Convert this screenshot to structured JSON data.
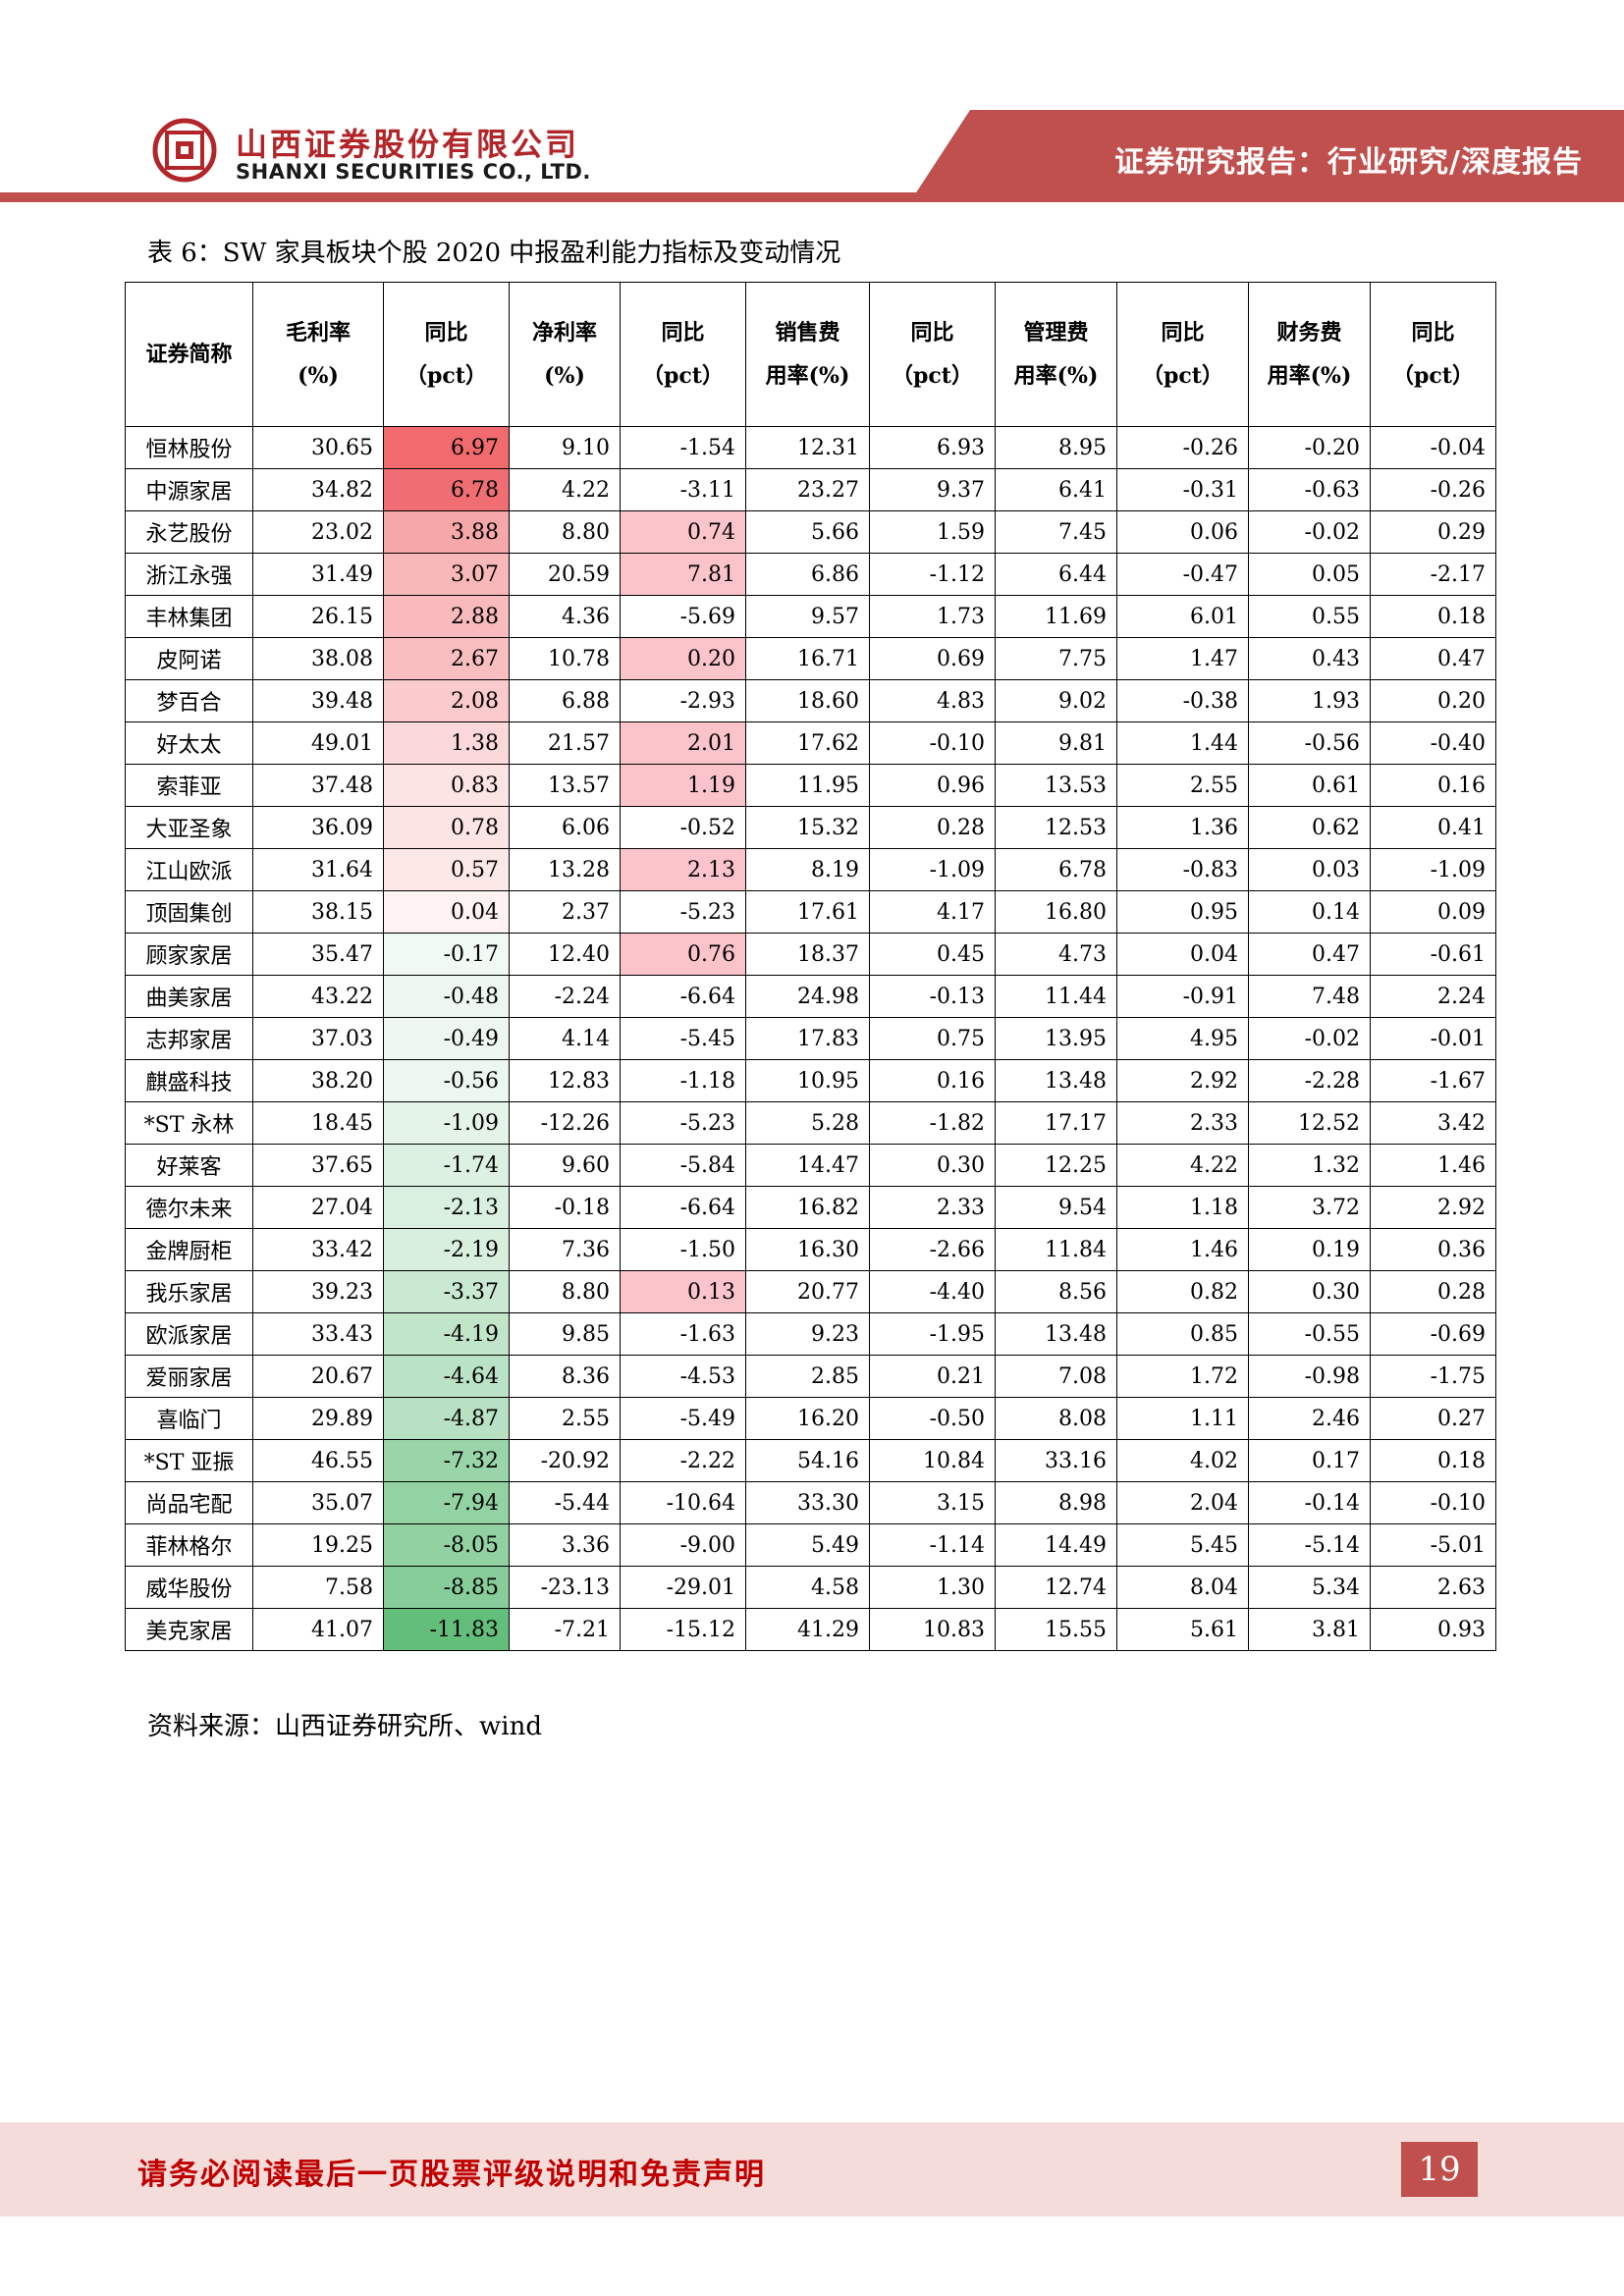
{
  "header": {
    "company_cn": "山西证券股份有限公司",
    "company_en": "SHANXI SECURITIES CO., LTD.",
    "report_type": "证券研究报告：行业研究/深度报告",
    "brand_color": "#c0504d"
  },
  "table": {
    "caption": "表 6：SW 家具板块个股 2020 中报盈利能力指标及变动情况",
    "headers": [
      [
        "证券简称"
      ],
      [
        "毛利率",
        "(%)"
      ],
      [
        "同比",
        "（pct）"
      ],
      [
        "净利率",
        "(%)"
      ],
      [
        "同比",
        "（pct）"
      ],
      [
        "销售费",
        "用率(%)"
      ],
      [
        "同比",
        "（pct）"
      ],
      [
        "管理费",
        "用率(%)"
      ],
      [
        "同比",
        "（pct）"
      ],
      [
        "财务费",
        "用率(%)"
      ],
      [
        "同比",
        "（pct）"
      ]
    ],
    "rows": [
      [
        "恒林股份",
        "30.65",
        "6.97",
        "9.10",
        "-1.54",
        "12.31",
        "6.93",
        "8.95",
        "-0.26",
        "-0.20",
        "-0.04"
      ],
      [
        "中源家居",
        "34.82",
        "6.78",
        "4.22",
        "-3.11",
        "23.27",
        "9.37",
        "6.41",
        "-0.31",
        "-0.63",
        "-0.26"
      ],
      [
        "永艺股份",
        "23.02",
        "3.88",
        "8.80",
        "0.74",
        "5.66",
        "1.59",
        "7.45",
        "0.06",
        "-0.02",
        "0.29"
      ],
      [
        "浙江永强",
        "31.49",
        "3.07",
        "20.59",
        "7.81",
        "6.86",
        "-1.12",
        "6.44",
        "-0.47",
        "0.05",
        "-2.17"
      ],
      [
        "丰林集团",
        "26.15",
        "2.88",
        "4.36",
        "-5.69",
        "9.57",
        "1.73",
        "11.69",
        "6.01",
        "0.55",
        "0.18"
      ],
      [
        "皮阿诺",
        "38.08",
        "2.67",
        "10.78",
        "0.20",
        "16.71",
        "0.69",
        "7.75",
        "1.47",
        "0.43",
        "0.47"
      ],
      [
        "梦百合",
        "39.48",
        "2.08",
        "6.88",
        "-2.93",
        "18.60",
        "4.83",
        "9.02",
        "-0.38",
        "1.93",
        "0.20"
      ],
      [
        "好太太",
        "49.01",
        "1.38",
        "21.57",
        "2.01",
        "17.62",
        "-0.10",
        "9.81",
        "1.44",
        "-0.56",
        "-0.40"
      ],
      [
        "索菲亚",
        "37.48",
        "0.83",
        "13.57",
        "1.19",
        "11.95",
        "0.96",
        "13.53",
        "2.55",
        "0.61",
        "0.16"
      ],
      [
        "大亚圣象",
        "36.09",
        "0.78",
        "6.06",
        "-0.52",
        "15.32",
        "0.28",
        "12.53",
        "1.36",
        "0.62",
        "0.41"
      ],
      [
        "江山欧派",
        "31.64",
        "0.57",
        "13.28",
        "2.13",
        "8.19",
        "-1.09",
        "6.78",
        "-0.83",
        "0.03",
        "-1.09"
      ],
      [
        "顶固集创",
        "38.15",
        "0.04",
        "2.37",
        "-5.23",
        "17.61",
        "4.17",
        "16.80",
        "0.95",
        "0.14",
        "0.09"
      ],
      [
        "顾家家居",
        "35.47",
        "-0.17",
        "12.40",
        "0.76",
        "18.37",
        "0.45",
        "4.73",
        "0.04",
        "0.47",
        "-0.61"
      ],
      [
        "曲美家居",
        "43.22",
        "-0.48",
        "-2.24",
        "-6.64",
        "24.98",
        "-0.13",
        "11.44",
        "-0.91",
        "7.48",
        "2.24"
      ],
      [
        "志邦家居",
        "37.03",
        "-0.49",
        "4.14",
        "-5.45",
        "17.83",
        "0.75",
        "13.95",
        "4.95",
        "-0.02",
        "-0.01"
      ],
      [
        "麒盛科技",
        "38.20",
        "-0.56",
        "12.83",
        "-1.18",
        "10.95",
        "0.16",
        "13.48",
        "2.92",
        "-2.28",
        "-1.67"
      ],
      [
        "*ST 永林",
        "18.45",
        "-1.09",
        "-12.26",
        "-5.23",
        "5.28",
        "-1.82",
        "17.17",
        "2.33",
        "12.52",
        "3.42"
      ],
      [
        "好莱客",
        "37.65",
        "-1.74",
        "9.60",
        "-5.84",
        "14.47",
        "0.30",
        "12.25",
        "4.22",
        "1.32",
        "1.46"
      ],
      [
        "德尔未来",
        "27.04",
        "-2.13",
        "-0.18",
        "-6.64",
        "16.82",
        "2.33",
        "9.54",
        "1.18",
        "3.72",
        "2.92"
      ],
      [
        "金牌厨柜",
        "33.42",
        "-2.19",
        "7.36",
        "-1.50",
        "16.30",
        "-2.66",
        "11.84",
        "1.46",
        "0.19",
        "0.36"
      ],
      [
        "我乐家居",
        "39.23",
        "-3.37",
        "8.80",
        "0.13",
        "20.77",
        "-4.40",
        "8.56",
        "0.82",
        "0.30",
        "0.28"
      ],
      [
        "欧派家居",
        "33.43",
        "-4.19",
        "9.85",
        "-1.63",
        "9.23",
        "-1.95",
        "13.48",
        "0.85",
        "-0.55",
        "-0.69"
      ],
      [
        "爱丽家居",
        "20.67",
        "-4.64",
        "8.36",
        "-4.53",
        "2.85",
        "0.21",
        "7.08",
        "1.72",
        "-0.98",
        "-1.75"
      ],
      [
        "喜临门",
        "29.89",
        "-4.87",
        "2.55",
        "-5.49",
        "16.20",
        "-0.50",
        "8.08",
        "1.11",
        "2.46",
        "0.27"
      ],
      [
        "*ST 亚振",
        "46.55",
        "-7.32",
        "-20.92",
        "-2.22",
        "54.16",
        "10.84",
        "33.16",
        "4.02",
        "0.17",
        "0.18"
      ],
      [
        "尚品宅配",
        "35.07",
        "-7.94",
        "-5.44",
        "-10.64",
        "33.30",
        "3.15",
        "8.98",
        "2.04",
        "-0.14",
        "-0.10"
      ],
      [
        "菲林格尔",
        "19.25",
        "-8.05",
        "3.36",
        "-9.00",
        "5.49",
        "-1.14",
        "14.49",
        "5.45",
        "-5.14",
        "-5.01"
      ],
      [
        "威华股份",
        "7.58",
        "-8.85",
        "-23.13",
        "-29.01",
        "4.58",
        "1.30",
        "12.74",
        "8.04",
        "5.34",
        "2.63"
      ],
      [
        "美克家居",
        "41.07",
        "-11.83",
        "-7.21",
        "-15.12",
        "41.29",
        "10.83",
        "15.55",
        "5.61",
        "3.81",
        "0.93"
      ]
    ],
    "heat_colors": {
      "col2_max_positive": "#f06a6e",
      "col2_min_negative": "#63be7b",
      "col4_positive": "#fbc4cb"
    },
    "source": "资料来源：山西证券研究所、wind"
  },
  "footer": {
    "disclaimer": "请务必阅读最后一页股票评级说明和免责声明",
    "page_number": "19"
  }
}
